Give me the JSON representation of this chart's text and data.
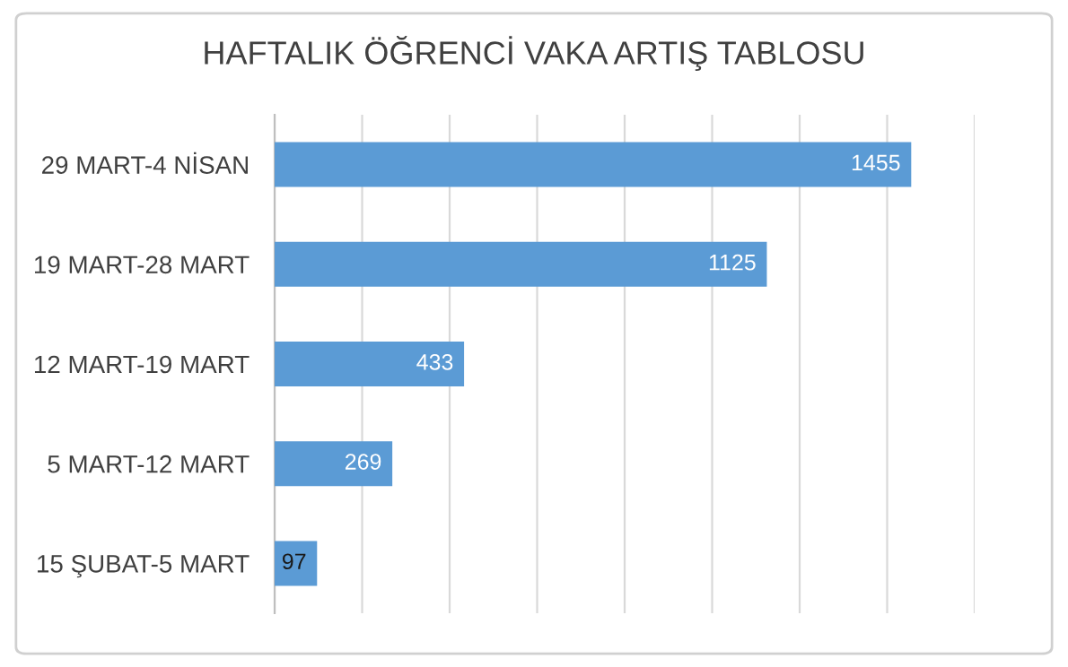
{
  "chart_data": {
    "type": "bar",
    "orientation": "horizontal",
    "title": "HAFTALIK ÖĞRENCİ VAKA ARTIŞ TABLOSU",
    "categories": [
      "29 MART-4 NİSAN",
      "19 MART-28 MART",
      "12 MART-19 MART",
      "5 MART-12 MART",
      "15 ŞUBAT-5 MART"
    ],
    "values": [
      1455,
      1125,
      433,
      269,
      97
    ],
    "color": "#5b9bd5",
    "xlim": [
      0,
      1600
    ],
    "xticks": [
      {
        "value": 0,
        "label": null
      },
      {
        "value": 200,
        "label": null
      },
      {
        "value": 400,
        "label": null
      },
      {
        "value": 600,
        "label": null
      },
      {
        "value": 800,
        "label": null
      },
      {
        "value": 1000,
        "label": null
      },
      {
        "value": 1200,
        "label": null
      },
      {
        "value": 1400,
        "label": null
      },
      {
        "value": 1600,
        "label": null
      }
    ],
    "grid": "x",
    "data_labels": true,
    "tick_labels": "y"
  }
}
